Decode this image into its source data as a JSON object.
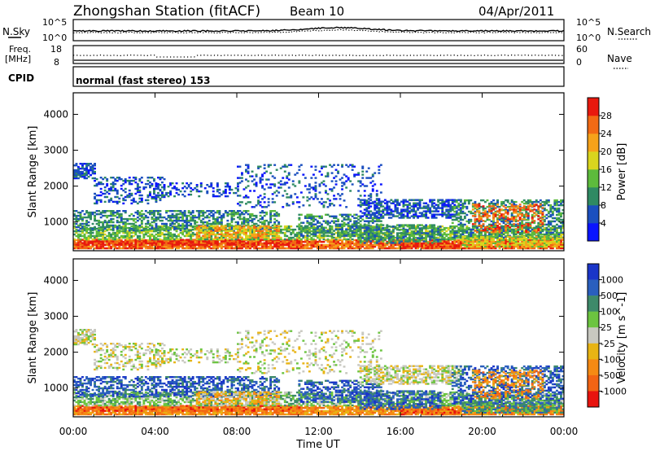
{
  "header": {
    "station_title": "Zhongshan Station (fitACF)",
    "beam": "Beam 10",
    "date": "04/Apr/2011"
  },
  "noise_panel": {
    "left_label": "N.Sky",
    "right_label": "N.Search",
    "right_legend_style": "dotted",
    "y_tick_top": "10^5",
    "y_tick_bottom": "10^0"
  },
  "freq_panel": {
    "left_label_line1": "Freq.",
    "left_label_line2": "[MHz]",
    "right_label": "Nave",
    "right_legend_style": "dotted",
    "left_tick_top": "18",
    "left_tick_bottom": "8",
    "right_tick_top": "60",
    "right_tick_bottom": "0"
  },
  "cpid": {
    "label": "CPID",
    "value": "normal (fast stereo) 153"
  },
  "chart_data": [
    {
      "type": "heatmap",
      "panel": "power",
      "ylabel": "Slant Range [km]",
      "xlim_hours": [
        0,
        24
      ],
      "ylim_km": [
        200,
        4600
      ],
      "yticks": [
        1000,
        2000,
        3000,
        4000
      ],
      "colorbar": {
        "label": "Power [dB]",
        "ticks": [
          "4",
          "8",
          "12",
          "16",
          "20",
          "24",
          "28"
        ],
        "bins": [
          {
            "lo": 0,
            "hi": 4,
            "color": "#0a14ff"
          },
          {
            "lo": 4,
            "hi": 8,
            "color": "#1b4fbf"
          },
          {
            "lo": 8,
            "hi": 12,
            "color": "#2f8a63"
          },
          {
            "lo": 12,
            "hi": 16,
            "color": "#5dbb3c"
          },
          {
            "lo": 16,
            "hi": 20,
            "color": "#d9d51e"
          },
          {
            "lo": 20,
            "hi": 24,
            "color": "#f6a21a"
          },
          {
            "lo": 24,
            "hi": 28,
            "color": "#f26a14"
          },
          {
            "lo": 28,
            "hi": 32,
            "color": "#e8190e"
          }
        ]
      }
    },
    {
      "type": "heatmap",
      "panel": "velocity",
      "ylabel": "Slant Range [km]",
      "xlabel": "Time UT",
      "xlim_hours": [
        0,
        24
      ],
      "ylim_km": [
        200,
        4600
      ],
      "xticks": [
        "00:00",
        "04:00",
        "08:00",
        "12:00",
        "16:00",
        "20:00",
        "00:00"
      ],
      "yticks": [
        1000,
        2000,
        3000,
        4000
      ],
      "colorbar": {
        "label": "Velocity [m s^-1]",
        "ticks": [
          "1000",
          "500",
          "100",
          "25",
          "-25",
          "-100",
          "-500",
          "-1000"
        ],
        "bins": [
          {
            "label": ">1000",
            "color": "#1a35c8"
          },
          {
            "label": "500..1000",
            "color": "#2a5fbe"
          },
          {
            "label": "100..500",
            "color": "#3e8a6a"
          },
          {
            "label": "25..100",
            "color": "#6cc440"
          },
          {
            "label": "-25..25",
            "color": "#c8c8c0"
          },
          {
            "label": "-100..-25",
            "color": "#e8b414"
          },
          {
            "label": "-500..-100",
            "color": "#f58a14"
          },
          {
            "label": "-1000..-500",
            "color": "#f26414"
          },
          {
            "label": "<-1000",
            "color": "#e8140e"
          }
        ]
      }
    }
  ]
}
